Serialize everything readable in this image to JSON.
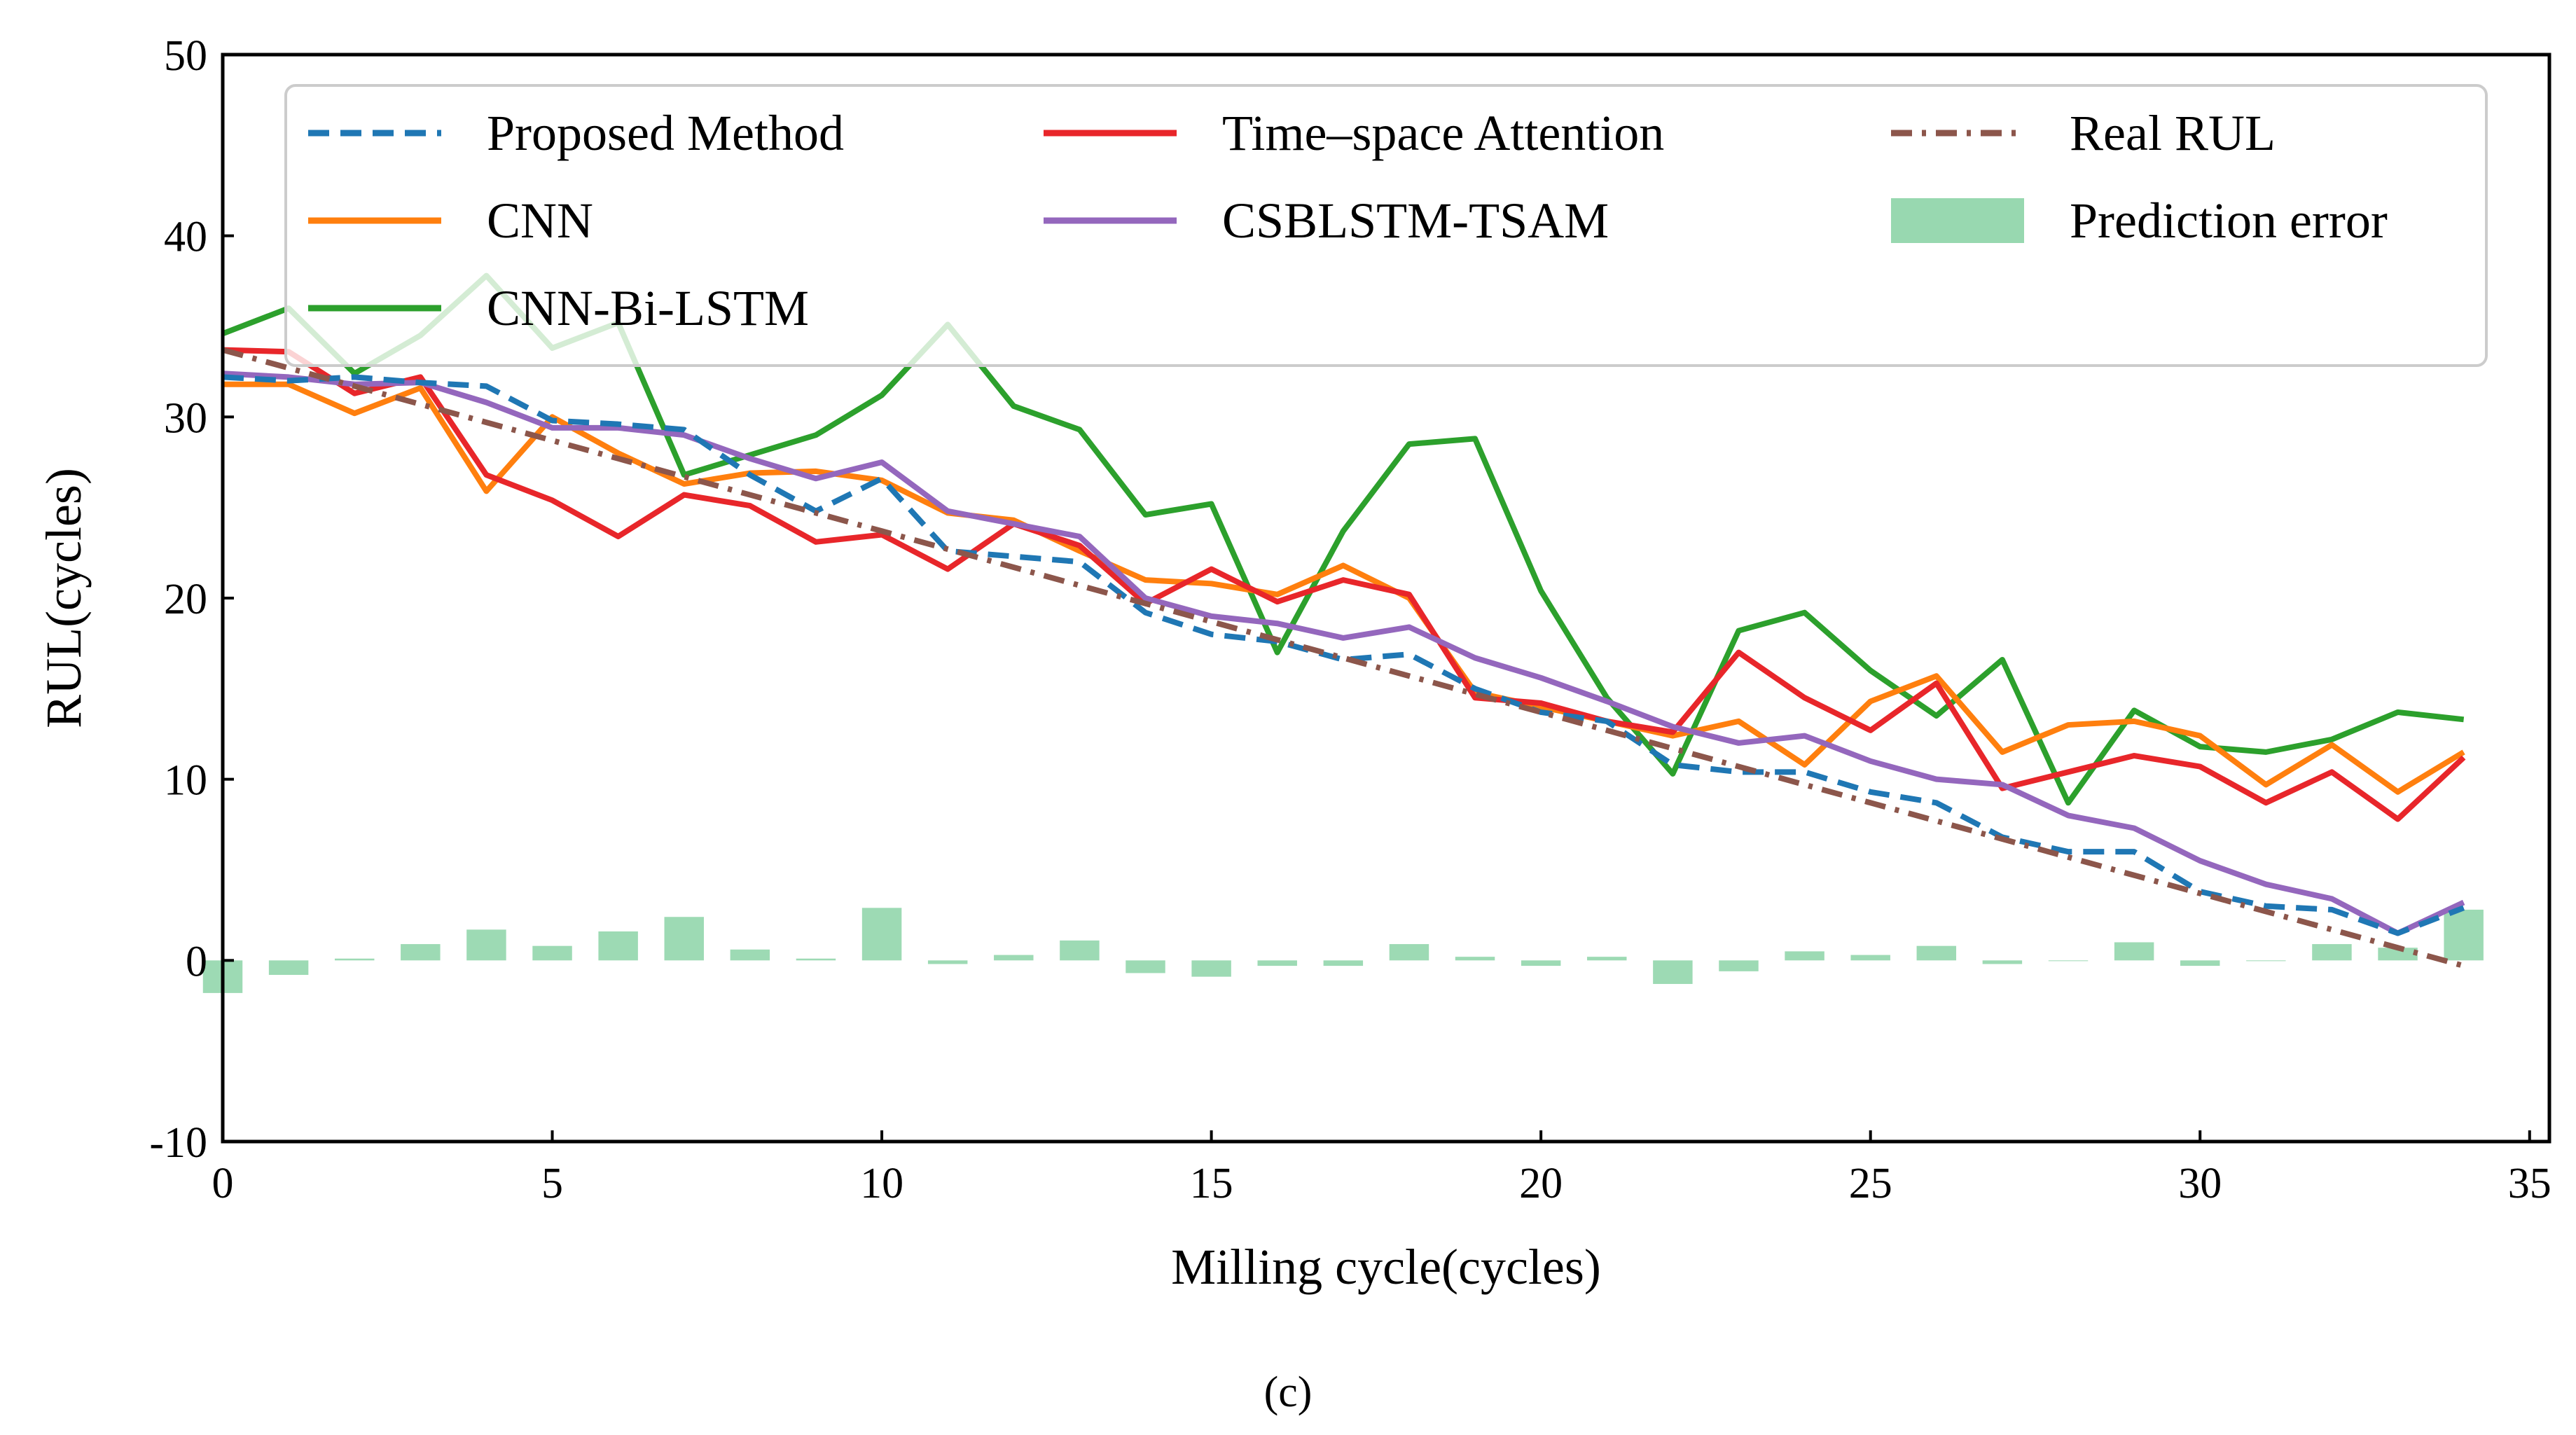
{
  "chart_data": {
    "type": "line",
    "title": "",
    "caption": "(c)",
    "xlabel": "Milling cycle(cycles)",
    "ylabel": "RUL(cycles)",
    "xlim": [
      0,
      35.3
    ],
    "ylim": [
      -10,
      50
    ],
    "xticks": [
      "0",
      "5",
      "10",
      "15",
      "20",
      "25",
      "30",
      "35"
    ],
    "xtick_values": [
      0,
      5,
      10,
      15,
      20,
      25,
      30,
      35
    ],
    "yticks": [
      "-10",
      "0",
      "10",
      "20",
      "30",
      "40",
      "50"
    ],
    "ytick_values": [
      -10,
      0,
      10,
      20,
      30,
      40,
      50
    ],
    "x": [
      0,
      1,
      2,
      3,
      4,
      5,
      6,
      7,
      8,
      9,
      10,
      11,
      12,
      13,
      14,
      15,
      16,
      17,
      18,
      19,
      20,
      21,
      22,
      23,
      24,
      25,
      26,
      27,
      28,
      29,
      30,
      31,
      32,
      33,
      34
    ],
    "series": [
      {
        "key": "proposed",
        "name": "Proposed Method",
        "color": "#1f77b4",
        "dash": "dashed",
        "values": [
          32.2,
          32.0,
          32.2,
          31.9,
          31.7,
          29.8,
          29.6,
          29.3,
          26.8,
          24.8,
          26.6,
          22.6,
          22.3,
          22.0,
          19.2,
          18.0,
          17.6,
          16.6,
          16.9,
          15.0,
          13.7,
          13.2,
          10.8,
          10.4,
          10.4,
          9.3,
          8.7,
          6.8,
          6.0,
          6.0,
          3.8,
          3.0,
          2.8,
          1.5,
          2.9
        ]
      },
      {
        "key": "cnn",
        "name": "CNN",
        "color": "#ff7f0e",
        "dash": "solid",
        "values": [
          31.8,
          31.8,
          30.2,
          31.6,
          25.9,
          30.0,
          28.0,
          26.3,
          26.9,
          27.0,
          26.5,
          24.7,
          24.3,
          22.6,
          21.0,
          20.8,
          20.2,
          21.8,
          20.0,
          14.8,
          14.0,
          13.2,
          12.4,
          13.2,
          10.8,
          14.3,
          15.7,
          11.5,
          13.0,
          13.2,
          12.4,
          9.7,
          11.9,
          9.3,
          11.5
        ]
      },
      {
        "key": "cnnbilstm",
        "name": "CNN-Bi-LSTM",
        "color": "#2ca02c",
        "dash": "solid",
        "values": [
          34.6,
          36.0,
          32.4,
          34.5,
          37.8,
          33.8,
          35.2,
          26.8,
          27.9,
          29.0,
          31.2,
          35.1,
          30.6,
          29.3,
          24.6,
          25.2,
          17.0,
          23.7,
          28.5,
          28.8,
          20.4,
          14.5,
          10.3,
          18.2,
          19.2,
          16.0,
          13.5,
          16.6,
          8.7,
          13.8,
          11.8,
          11.5,
          12.2,
          13.7,
          13.3
        ]
      },
      {
        "key": "tsa",
        "name": "Time–space Attention",
        "color": "#e8262a",
        "dash": "solid",
        "values": [
          33.7,
          33.6,
          31.3,
          32.2,
          26.8,
          25.4,
          23.4,
          25.7,
          25.1,
          23.1,
          23.5,
          21.6,
          24.1,
          22.9,
          19.7,
          21.6,
          19.8,
          21.0,
          20.2,
          14.5,
          14.2,
          13.2,
          12.6,
          17.0,
          14.5,
          12.7,
          15.3,
          9.5,
          10.4,
          11.3,
          10.7,
          8.7,
          10.4,
          7.8,
          11.2
        ]
      },
      {
        "key": "csblstm",
        "name": "CSBLSTM-TSAM",
        "color": "#9467bd",
        "dash": "solid",
        "values": [
          32.4,
          32.2,
          31.8,
          31.9,
          30.8,
          29.4,
          29.4,
          29.0,
          27.7,
          26.6,
          27.5,
          24.8,
          24.1,
          23.4,
          20.0,
          19.0,
          18.6,
          17.8,
          18.4,
          16.7,
          15.6,
          14.3,
          12.9,
          12.0,
          12.4,
          11.0,
          10.0,
          9.7,
          8.0,
          7.3,
          5.5,
          4.2,
          3.4,
          1.5,
          3.2
        ]
      },
      {
        "key": "real",
        "name": "Real RUL",
        "color": "#8c564b",
        "dash": "dashdot",
        "values": [
          33.7,
          32.7,
          31.7,
          30.7,
          29.7,
          28.7,
          27.7,
          26.7,
          25.7,
          24.7,
          23.7,
          22.7,
          21.7,
          20.7,
          19.7,
          18.7,
          17.7,
          16.7,
          15.7,
          14.7,
          13.7,
          12.7,
          11.7,
          10.7,
          9.7,
          8.7,
          7.7,
          6.7,
          5.7,
          4.7,
          3.7,
          2.7,
          1.7,
          0.7,
          -0.3
        ]
      }
    ],
    "error_bars": {
      "name": "Prediction error",
      "color": "#98d8b0",
      "values": [
        -1.8,
        -0.8,
        0.1,
        0.9,
        1.7,
        0.8,
        1.6,
        2.4,
        0.6,
        0.1,
        2.9,
        -0.2,
        0.3,
        1.1,
        -0.7,
        -0.9,
        -0.3,
        -0.3,
        0.9,
        0.2,
        -0.3,
        0.2,
        -1.3,
        -0.6,
        0.5,
        0.3,
        0.8,
        -0.2,
        0.0,
        1.0,
        -0.3,
        0.0,
        0.9,
        0.7,
        2.8
      ]
    },
    "legend": {
      "position": "top",
      "entries": [
        {
          "label": "Proposed Method",
          "ref": "proposed"
        },
        {
          "label": "Time–space Attention",
          "ref": "tsa"
        },
        {
          "label": "Real RUL",
          "ref": "real"
        },
        {
          "label": "CNN",
          "ref": "cnn"
        },
        {
          "label": "CSBLSTM-TSAM",
          "ref": "csblstm"
        },
        {
          "label": "Prediction error",
          "ref": "error"
        },
        {
          "label": "CNN-Bi-LSTM",
          "ref": "cnnbilstm"
        }
      ]
    }
  }
}
